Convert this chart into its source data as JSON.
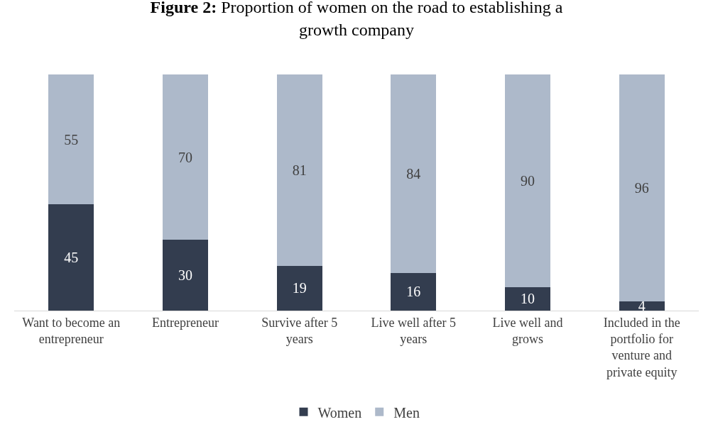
{
  "chart_data": {
    "type": "bar",
    "stacked": true,
    "title": "Figure 2: Proportion of women on the road to establishing a growth company",
    "categories": [
      "Want to become an entrepreneur",
      "Entrepreneur",
      "Survive after 5 years",
      "Live well after 5 years",
      "Live well and grows",
      "Included in the portfolio for venture and private equity"
    ],
    "series": [
      {
        "name": "Women",
        "color": "#333d4f",
        "values": [
          45,
          30,
          19,
          16,
          10,
          4
        ]
      },
      {
        "name": "Men",
        "color": "#adb9ca",
        "values": [
          55,
          70,
          81,
          84,
          90,
          96
        ]
      }
    ],
    "data_labels": true,
    "legend": "bottom",
    "tick_labels": "x"
  }
}
